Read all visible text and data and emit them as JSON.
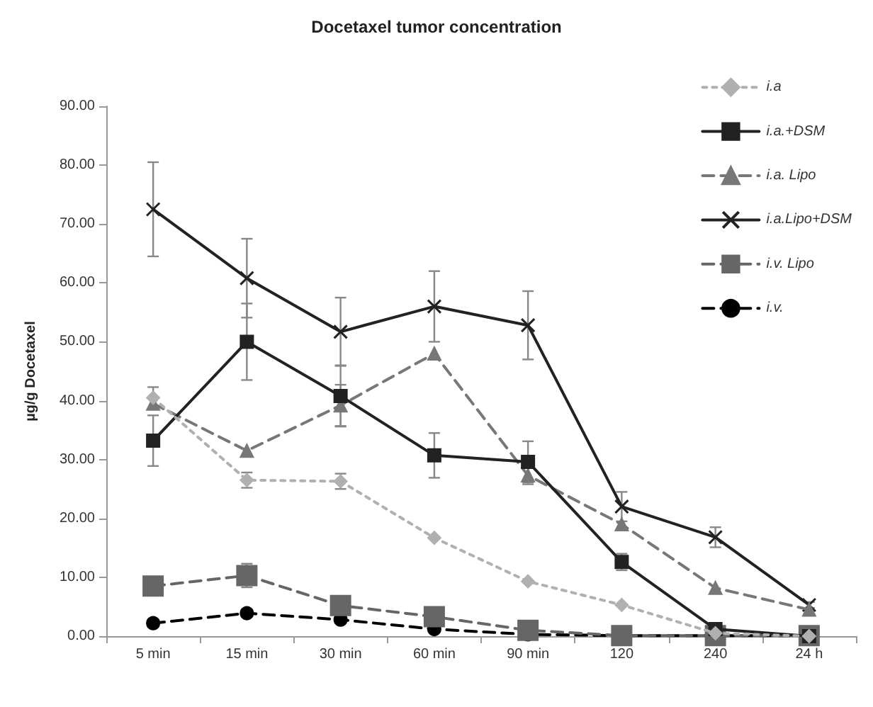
{
  "chart_data": {
    "type": "line",
    "title": "Docetaxel tumor concentration",
    "ylabel": "µg/g Docetaxel",
    "categories": [
      "5 min",
      "15 min",
      "30 min",
      "60 min",
      "90 min",
      "120",
      "240",
      "24 h"
    ],
    "series": [
      {
        "name": "i.a",
        "color": "#b0b0b0",
        "marker": "diamond",
        "line_style": "dotted",
        "values": [
          40.5,
          26.5,
          26.3,
          16.7,
          9.3,
          5.3,
          0.5,
          0
        ],
        "errors": [
          1.8,
          1.3,
          1.3,
          null,
          null,
          null,
          null,
          null
        ]
      },
      {
        "name": "i.a.+DSM",
        "color": "#222222",
        "marker": "square",
        "line_style": "solid",
        "values": [
          33.2,
          50,
          40.8,
          30.7,
          29.6,
          12.6,
          1.2,
          0
        ],
        "errors": [
          4.3,
          6.5,
          5.2,
          3.8,
          3.5,
          1.4,
          null,
          null
        ]
      },
      {
        "name": "i.a. Lipo",
        "color": "#777777",
        "marker": "triangle",
        "line_style": "dashed",
        "values": [
          39.5,
          31.5,
          39.2,
          48,
          27.3,
          19,
          8.2,
          4.5
        ],
        "errors": [
          null,
          null,
          3.5,
          null,
          1.5,
          null,
          null,
          null
        ]
      },
      {
        "name": "i.a.Lipo+DSM",
        "color": "#222222",
        "marker": "cross",
        "line_style": "solid",
        "values": [
          72.5,
          60.8,
          51.7,
          56,
          52.8,
          22,
          16.8,
          5.3
        ],
        "errors": [
          8,
          6.7,
          5.8,
          6,
          5.8,
          2.5,
          1.7,
          0.5
        ]
      },
      {
        "name": "i.v. Lipo",
        "color": "#666666",
        "marker": "square",
        "line_style": "dashed",
        "values": [
          8.5,
          10.3,
          5.2,
          3.3,
          1.0,
          0.1,
          0.1,
          0.1
        ],
        "errors": [
          1.5,
          2,
          null,
          null,
          null,
          null,
          null,
          null
        ]
      },
      {
        "name": "i.v.",
        "color": "#000000",
        "marker": "circle",
        "line_style": "dashed",
        "values": [
          2.2,
          3.9,
          2.8,
          1.2,
          0.3,
          0.1,
          0.1,
          0.1
        ]
      }
    ],
    "ylim": [
      0,
      90
    ],
    "yticks": [
      {
        "value": 0,
        "label": "0.00"
      },
      {
        "value": 10,
        "label": "10.00"
      },
      {
        "value": 20,
        "label": "20.00"
      },
      {
        "value": 30,
        "label": "30.00"
      },
      {
        "value": 40,
        "label": "40.00"
      },
      {
        "value": 50,
        "label": "50.00"
      },
      {
        "value": 60,
        "label": "60.00"
      },
      {
        "value": 70,
        "label": "70.00"
      },
      {
        "value": 80,
        "label": "80.00"
      },
      {
        "value": 90,
        "label": "90.00"
      }
    ],
    "grid": false,
    "legend": "top right"
  }
}
